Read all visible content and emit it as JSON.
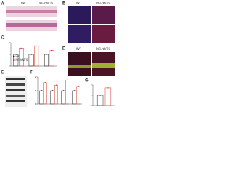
{
  "panels": {
    "a": {
      "letter": "A",
      "labels": [
        "WT",
        "NG-hMTS"
      ]
    },
    "b": {
      "letter": "B",
      "labels": [
        "WT",
        "NG-hMTS"
      ]
    },
    "c": {
      "letter": "C",
      "chart": {
        "type": "bar",
        "categories": [
          null,
          null,
          null
        ],
        "series": [
          {
            "name": "WT",
            "color": "#222222",
            "values": [
              1,
              1,
              1
            ]
          },
          {
            "name": "NG-hMTS",
            "color": "#d9352b",
            "values": [
              1.5,
              1.7,
              1.3
            ]
          }
        ],
        "ylim": [
          0,
          2
        ],
        "yticks": [
          0,
          1,
          2
        ]
      }
    },
    "d": {
      "letter": "D",
      "labels": [
        "WT",
        "NG-hMTS"
      ]
    },
    "e": {
      "letter": "E"
    },
    "f": {
      "letter": "F",
      "chart": {
        "type": "bar",
        "categories": [
          null,
          null,
          null,
          null
        ],
        "series": [
          {
            "name": "WT",
            "color": "#222222",
            "values": [
              1,
              1,
              1,
              1
            ]
          },
          {
            "name": "NG-hMTS",
            "color": "#d9352b",
            "values": [
              1.6,
              1.4,
              1.8,
              1.3
            ]
          }
        ],
        "ylim": [
          0,
          2
        ],
        "yticks": [
          0,
          1,
          2
        ]
      }
    },
    "g": {
      "letter": "G",
      "chart": {
        "type": "bar",
        "categories": [
          null
        ],
        "series": [
          {
            "name": "WT",
            "color": "#222222",
            "values": [
              1
            ]
          },
          {
            "name": "NG-hMTS",
            "color": "#d9352b",
            "values": [
              1.7
            ]
          }
        ],
        "ylim": [
          0,
          2
        ],
        "yticks": [
          0,
          1,
          2
        ]
      }
    }
  }
}
